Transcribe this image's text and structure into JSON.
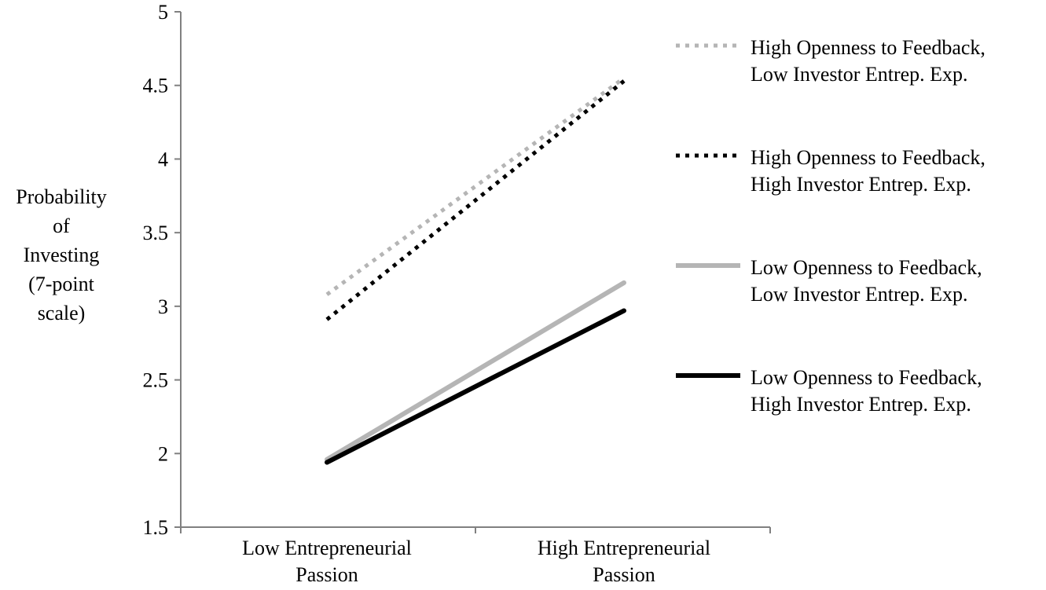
{
  "chart_data": {
    "type": "line",
    "title": "",
    "ylabel_lines": [
      "Probability",
      "of",
      "Investing",
      "(7-point",
      "scale)"
    ],
    "xlabel": "",
    "categories": [
      [
        "Low Entrepreneurial",
        "Passion"
      ],
      [
        "High Entrepreneurial",
        "Passion"
      ]
    ],
    "ylim": [
      1.5,
      5
    ],
    "yticks": [
      "1.5",
      "2",
      "2.5",
      "3",
      "3.5",
      "4",
      "4.5",
      "5"
    ],
    "grid": false,
    "legend_position": "right",
    "series": [
      {
        "name": [
          "High Openness to Feedback,",
          "Low Investor Entrep. Exp."
        ],
        "values": [
          3.08,
          4.55
        ],
        "color": "#b5b5b5",
        "style": "dotted"
      },
      {
        "name": [
          "High Openness to Feedback,",
          "High Investor Entrep. Exp."
        ],
        "values": [
          2.91,
          4.53
        ],
        "color": "#000000",
        "style": "dotted"
      },
      {
        "name": [
          "Low Openness to Feedback,",
          "Low Investor Entrep. Exp."
        ],
        "values": [
          1.96,
          3.16
        ],
        "color": "#b5b5b5",
        "style": "solid"
      },
      {
        "name": [
          "Low Openness to Feedback,",
          "High Investor Entrep. Exp."
        ],
        "values": [
          1.94,
          2.97
        ],
        "color": "#000000",
        "style": "solid"
      }
    ]
  }
}
